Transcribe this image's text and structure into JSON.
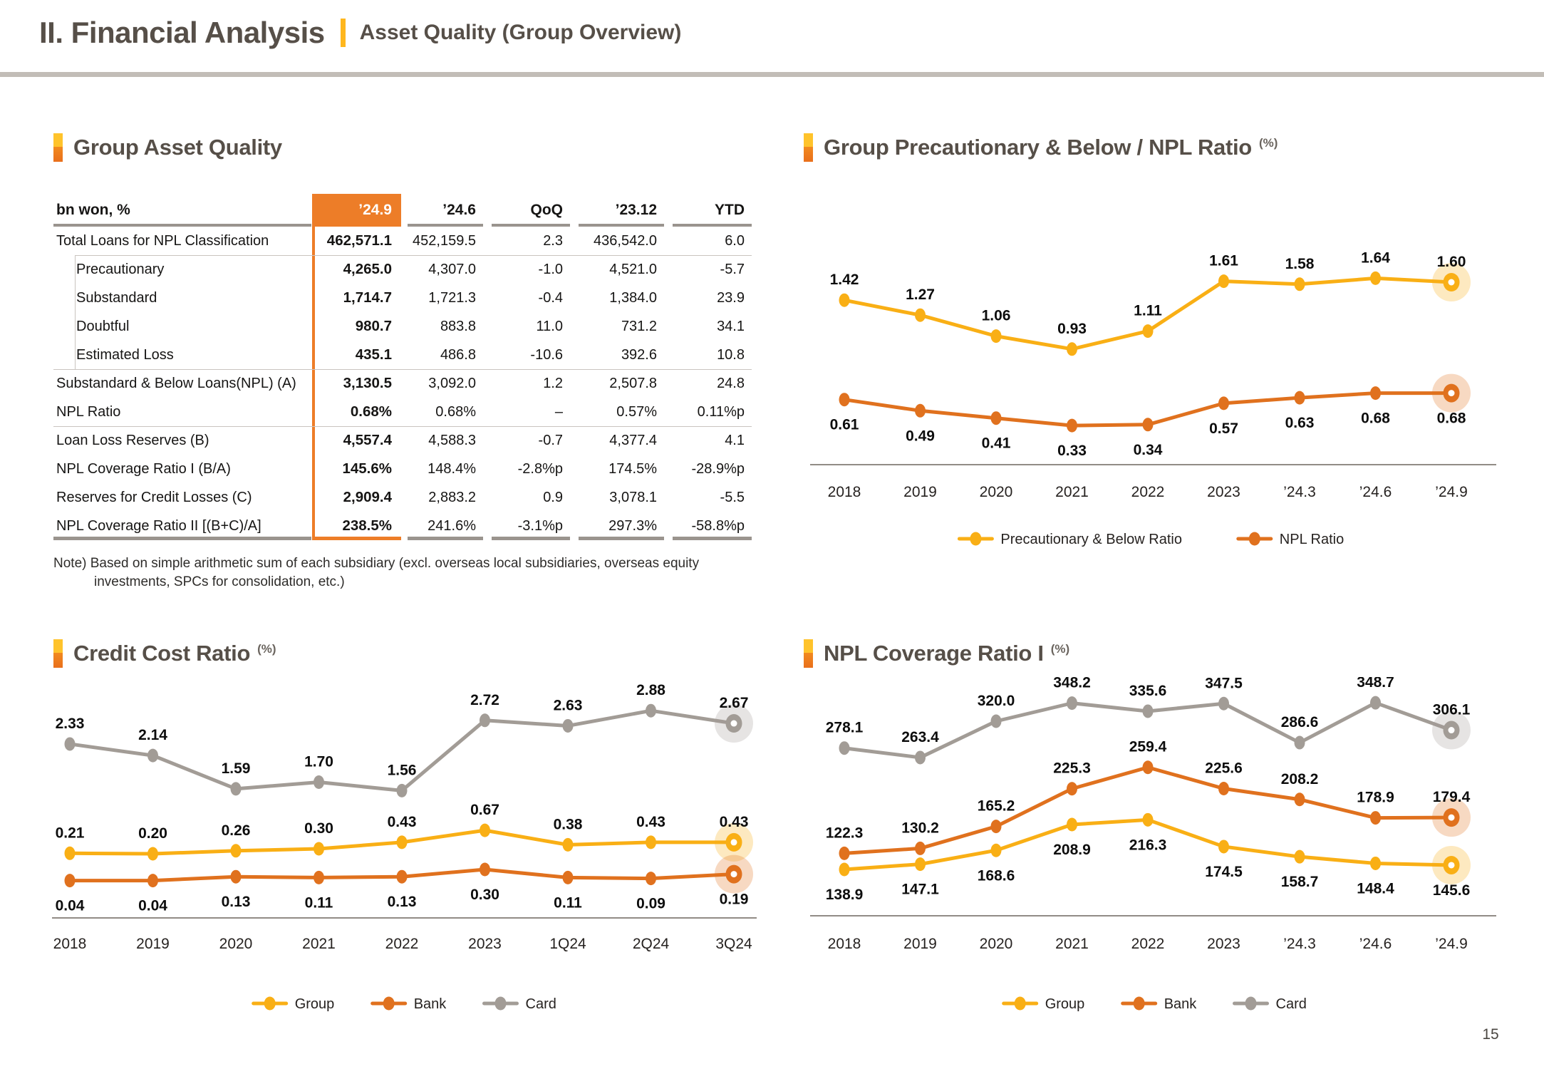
{
  "header": {
    "title": "II. Financial Analysis",
    "subtitle": "Asset Quality (Group Overview)"
  },
  "page_number": "15",
  "table_section": {
    "title": "Group Asset Quality",
    "unit_label": "bn won, %",
    "columns": [
      "’24.9",
      "’24.6",
      "QoQ",
      "’23.12",
      "YTD"
    ],
    "rows": [
      {
        "label": "Total Loans for NPL Classification",
        "indent": false,
        "values": [
          "462,571.1",
          "452,159.5",
          "2.3",
          "436,542.0",
          "6.0"
        ]
      },
      {
        "label": "Precautionary",
        "indent": true,
        "values": [
          "4,265.0",
          "4,307.0",
          "-1.0",
          "4,521.0",
          "-5.7"
        ]
      },
      {
        "label": "Substandard",
        "indent": true,
        "values": [
          "1,714.7",
          "1,721.3",
          "-0.4",
          "1,384.0",
          "23.9"
        ]
      },
      {
        "label": "Doubtful",
        "indent": true,
        "values": [
          "980.7",
          "883.8",
          "11.0",
          "731.2",
          "34.1"
        ]
      },
      {
        "label": "Estimated Loss",
        "indent": true,
        "values": [
          "435.1",
          "486.8",
          "-10.6",
          "392.6",
          "10.8"
        ]
      },
      {
        "label": "Substandard & Below Loans(NPL) (A)",
        "indent": false,
        "values": [
          "3,130.5",
          "3,092.0",
          "1.2",
          "2,507.8",
          "24.8"
        ]
      },
      {
        "label": "NPL Ratio",
        "indent": false,
        "values": [
          "0.68%",
          "0.68%",
          "–",
          "0.57%",
          "0.11%p"
        ]
      },
      {
        "label": "Loan Loss Reserves (B)",
        "indent": false,
        "values": [
          "4,557.4",
          "4,588.3",
          "-0.7",
          "4,377.4",
          "4.1"
        ]
      },
      {
        "label": "NPL Coverage Ratio I (B/A)",
        "indent": false,
        "values": [
          "145.6%",
          "148.4%",
          "-2.8%p",
          "174.5%",
          "-28.9%p"
        ]
      },
      {
        "label": "Reserves for Credit Losses (C)",
        "indent": false,
        "values": [
          "2,909.4",
          "2,883.2",
          "0.9",
          "3,078.1",
          "-5.5"
        ]
      },
      {
        "label": "NPL Coverage Ratio II [(B+C)/A]",
        "indent": false,
        "values": [
          "238.5%",
          "241.6%",
          "-3.1%p",
          "297.3%",
          "-58.8%p"
        ]
      }
    ],
    "note_line1": "Note) Based on simple arithmetic sum of each subsidiary (excl. overseas local subsidiaries, overseas equity",
    "note_line2": "investments, SPCs for consolidation, etc.)"
  },
  "colors": {
    "yellow": "#f9af15",
    "orange": "#e0711e",
    "gray": "#a29c96",
    "table_highlight": "#ed7d28",
    "title_text": "#564f48",
    "accent_bar": "#ffb71e"
  },
  "chart_data": [
    {
      "id": "pnb",
      "type": "line",
      "title": "Group Precautionary & Below / NPL Ratio",
      "unit": "(%)",
      "decimals": 2,
      "legend_position": "bottom",
      "grid": false,
      "categories": [
        "2018",
        "2019",
        "2020",
        "2021",
        "2022",
        "2023",
        "’24.3",
        "’24.6",
        "’24.9"
      ],
      "series": [
        {
          "name": "Precautionary & Below Ratio",
          "color": "#f9af15",
          "labels": "above",
          "values": [
            1.42,
            1.27,
            1.06,
            0.93,
            1.11,
            1.61,
            1.58,
            1.64,
            1.6
          ]
        },
        {
          "name": "NPL Ratio",
          "color": "#e0711e",
          "labels": "below",
          "values": [
            0.61,
            0.49,
            0.41,
            0.33,
            0.34,
            0.57,
            0.63,
            0.68,
            0.68
          ]
        }
      ]
    },
    {
      "id": "credit_cost",
      "type": "line",
      "title": "Credit Cost Ratio",
      "unit": "(%)",
      "decimals": 2,
      "legend_position": "bottom",
      "grid": false,
      "categories": [
        "2018",
        "2019",
        "2020",
        "2021",
        "2022",
        "2023",
        "1Q24",
        "2Q24",
        "3Q24"
      ],
      "series": [
        {
          "name": "Group",
          "color": "#f9af15",
          "labels": "above",
          "values": [
            0.21,
            0.2,
            0.26,
            0.3,
            0.43,
            0.67,
            0.38,
            0.43,
            0.43
          ]
        },
        {
          "name": "Bank",
          "color": "#e0711e",
          "labels": "below",
          "values": [
            0.04,
            0.04,
            0.13,
            0.11,
            0.13,
            0.3,
            0.11,
            0.09,
            0.19
          ]
        },
        {
          "name": "Card",
          "color": "#a29c96",
          "labels": "above",
          "values": [
            2.33,
            2.14,
            1.59,
            1.7,
            1.56,
            2.72,
            2.63,
            2.88,
            2.67
          ]
        }
      ]
    },
    {
      "id": "npl_coverage",
      "type": "line",
      "title": "NPL Coverage Ratio I",
      "unit": "(%)",
      "decimals": 1,
      "legend_position": "bottom",
      "grid": false,
      "categories": [
        "2018",
        "2019",
        "2020",
        "2021",
        "2022",
        "2023",
        "’24.3",
        "’24.6",
        "’24.9"
      ],
      "series": [
        {
          "name": "Group",
          "color": "#f9af15",
          "labels": "below",
          "values": [
            138.9,
            147.1,
            168.6,
            208.9,
            216.3,
            174.5,
            158.7,
            148.4,
            145.6
          ]
        },
        {
          "name": "Bank",
          "color": "#e0711e",
          "labels": "above",
          "values": [
            122.3,
            130.2,
            165.2,
            225.3,
            259.4,
            225.6,
            208.2,
            178.9,
            179.4
          ]
        },
        {
          "name": "Card",
          "color": "#a29c96",
          "labels": "above",
          "values": [
            278.1,
            263.4,
            320.0,
            348.2,
            335.6,
            347.5,
            286.6,
            348.7,
            306.1
          ]
        }
      ]
    }
  ]
}
